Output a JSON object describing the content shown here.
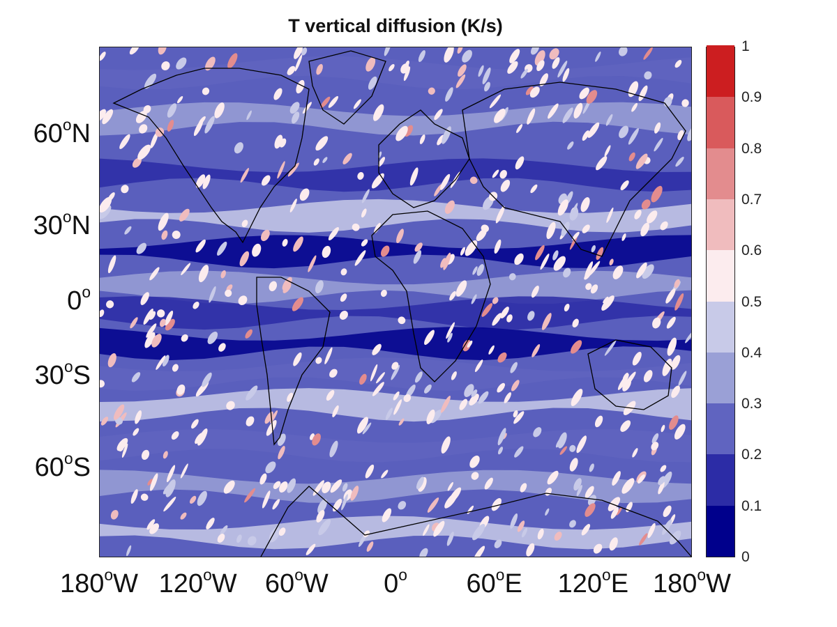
{
  "title": "T vertical diffusion (K/s)",
  "latitude_labels": [
    {
      "deg": 60,
      "value": "60",
      "suffix": "N"
    },
    {
      "deg": 30,
      "value": "30",
      "suffix": "N"
    },
    {
      "deg": 0,
      "value": "0",
      "suffix": ""
    },
    {
      "deg": -30,
      "value": "30",
      "suffix": "S"
    },
    {
      "deg": -60,
      "value": "60",
      "suffix": "S"
    }
  ],
  "longitude_labels": [
    {
      "deg": -180,
      "value": "180",
      "suffix": "W"
    },
    {
      "deg": -120,
      "value": "120",
      "suffix": "W"
    },
    {
      "deg": -60,
      "value": "60",
      "suffix": "W"
    },
    {
      "deg": 0,
      "value": "0",
      "suffix": ""
    },
    {
      "deg": 60,
      "value": "60",
      "suffix": "E"
    },
    {
      "deg": 120,
      "value": "120",
      "suffix": "E"
    },
    {
      "deg": 180,
      "value": "180",
      "suffix": "W"
    }
  ],
  "degree_symbol": "o",
  "colorbar": {
    "ticks": [
      "0",
      "0.1",
      "0.2",
      "0.3",
      "0.4",
      "0.5",
      "0.6",
      "0.7",
      "0.8",
      "0.9",
      "1"
    ],
    "colors": [
      "#00008c",
      "#2c2ca6",
      "#6064c0",
      "#9aa0d6",
      "#c8cae8",
      "#fcecee",
      "#f0bcbe",
      "#e38c8e",
      "#d95a5c",
      "#cc1e20"
    ]
  },
  "chart_data": {
    "type": "heatmap",
    "title": "T vertical diffusion (K/s)",
    "xlim": [
      -180,
      180
    ],
    "ylim": [
      -90,
      90
    ],
    "color_range": [
      0,
      1
    ],
    "levels": [
      0,
      0.1,
      0.2,
      0.3,
      0.4,
      0.5,
      0.6,
      0.7,
      0.8,
      0.9,
      1
    ]
  }
}
